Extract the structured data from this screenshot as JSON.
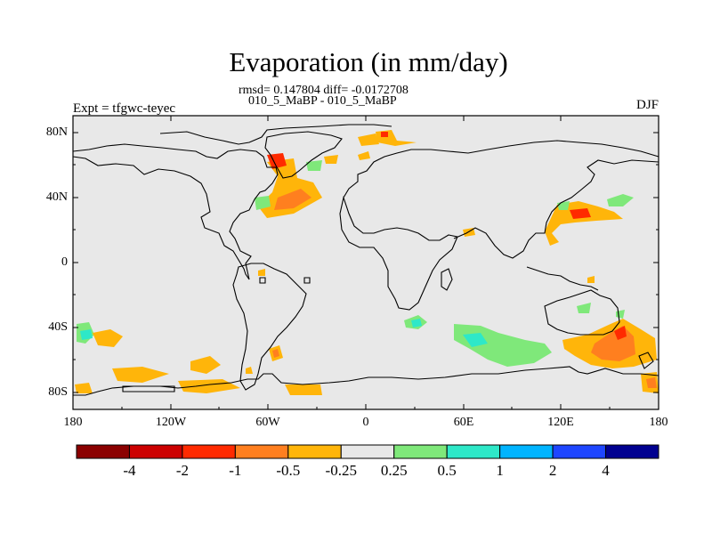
{
  "title": "Evaporation (in mm/day)",
  "stats_line": "rmsd= 0.147804 diff= -0.0172708",
  "case_line": "010_5_MaBP - 010_5_MaBP",
  "left_header": "Expt = tfgwc-teyec",
  "right_header": "DJF",
  "lat_labels": [
    "80N",
    "40N",
    "0",
    "40S",
    "80S"
  ],
  "lon_labels": [
    "180",
    "120W",
    "60W",
    "0",
    "60E",
    "120E",
    "180"
  ],
  "colorbar": {
    "labels": [
      "-4",
      "-2",
      "-1",
      "-0.5",
      "-0.25",
      "0.25",
      "0.5",
      "1",
      "2",
      "4"
    ],
    "colors": [
      "#8b0000",
      "#cc0000",
      "#ff2a00",
      "#ff7f1f",
      "#ffb50a",
      "#e8e8e8",
      "#7fe87a",
      "#2ee8c8",
      "#00b4ff",
      "#1e46ff",
      "#000090"
    ]
  },
  "map_colors": {
    "background": "#e8e8e8",
    "coast": "#000000"
  }
}
